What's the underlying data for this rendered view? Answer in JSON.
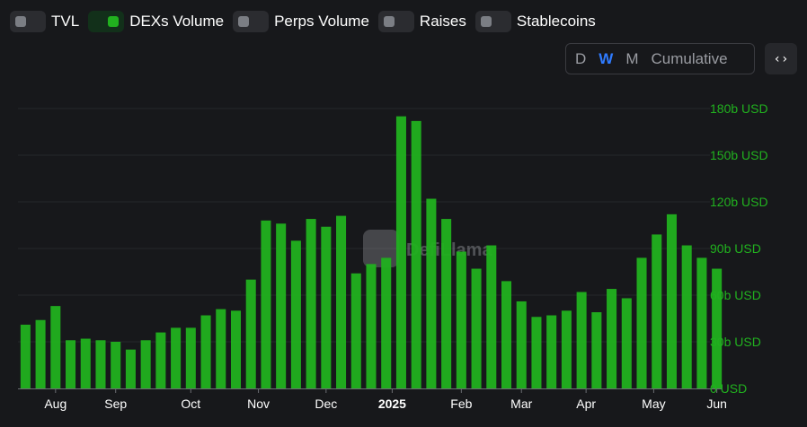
{
  "toggles": [
    {
      "label": "TVL",
      "on": false
    },
    {
      "label": "DEXs Volume",
      "on": true
    },
    {
      "label": "Perps Volume",
      "on": false
    },
    {
      "label": "Raises",
      "on": false
    },
    {
      "label": "Stablecoins",
      "on": false
    }
  ],
  "period": {
    "options": [
      "D",
      "W",
      "M",
      "Cumulative"
    ],
    "selected": "W"
  },
  "embed_icon": "code-icon",
  "embed_glyph": "‹›",
  "watermark": "DefiLlama",
  "colors": {
    "bar": "#21b11f",
    "axis_label": "#21b11f",
    "background": "#17181b",
    "active_period": "#2f7bff"
  },
  "chart_data": {
    "type": "bar",
    "series": [
      {
        "name": "DEXs Volume",
        "values": [
          41,
          44,
          53,
          31,
          32,
          31,
          30,
          25,
          31,
          36,
          39,
          39,
          47,
          51,
          50,
          70,
          108,
          106,
          95,
          109,
          104,
          111,
          74,
          80,
          84,
          175,
          172,
          122,
          109,
          88,
          77,
          92,
          69,
          56,
          46,
          47,
          50,
          62,
          49,
          64,
          58,
          84,
          99,
          112,
          92,
          84,
          77
        ]
      }
    ],
    "x_tick_labels": [
      {
        "label": "Aug",
        "index": 2,
        "bold": false
      },
      {
        "label": "Sep",
        "index": 6,
        "bold": false
      },
      {
        "label": "Oct",
        "index": 11,
        "bold": false
      },
      {
        "label": "Nov",
        "index": 15.5,
        "bold": false
      },
      {
        "label": "Dec",
        "index": 20,
        "bold": false
      },
      {
        "label": "2025",
        "index": 24.4,
        "bold": true
      },
      {
        "label": "Feb",
        "index": 29,
        "bold": false
      },
      {
        "label": "Mar",
        "index": 33,
        "bold": false
      },
      {
        "label": "Apr",
        "index": 37.3,
        "bold": false
      },
      {
        "label": "May",
        "index": 41.8,
        "bold": false
      },
      {
        "label": "Jun",
        "index": 46,
        "bold": false
      }
    ],
    "y_ticks": [
      {
        "value": 0,
        "label": "0 USD"
      },
      {
        "value": 30,
        "label": "30b USD"
      },
      {
        "value": 60,
        "label": "60b USD"
      },
      {
        "value": 90,
        "label": "90b USD"
      },
      {
        "value": 120,
        "label": "120b USD"
      },
      {
        "value": 150,
        "label": "150b USD"
      },
      {
        "value": 180,
        "label": "180b USD"
      }
    ],
    "ylim": [
      0,
      180
    ],
    "y_unit": "billion USD",
    "y_axis_position": "right",
    "grid": true
  }
}
